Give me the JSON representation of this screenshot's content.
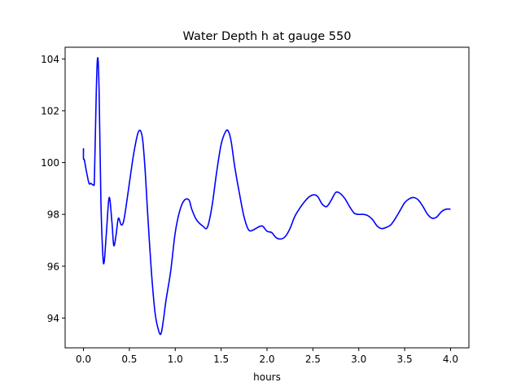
{
  "chart_data": {
    "type": "line",
    "title": "Water Depth h at gauge 550",
    "xlabel": "hours",
    "ylabel": "",
    "xlim": [
      -0.2,
      4.2
    ],
    "ylim": [
      92.85,
      104.45
    ],
    "xticks": [
      0.0,
      0.5,
      1.0,
      1.5,
      2.0,
      2.5,
      3.0,
      3.5,
      4.0
    ],
    "xtick_labels": [
      "0.0",
      "0.5",
      "1.0",
      "1.5",
      "2.0",
      "2.5",
      "3.0",
      "3.5",
      "4.0"
    ],
    "yticks": [
      94,
      96,
      98,
      100,
      102,
      104
    ],
    "ytick_labels": [
      "94",
      "96",
      "98",
      "100",
      "102",
      "104"
    ],
    "grid": false,
    "legend": "none",
    "series": [
      {
        "color": "#0000ff",
        "x": [
          0.0,
          0.0,
          0.01,
          0.03,
          0.06,
          0.08,
          0.11,
          0.12,
          0.14,
          0.155,
          0.17,
          0.19,
          0.21,
          0.225,
          0.25,
          0.28,
          0.31,
          0.33,
          0.355,
          0.38,
          0.41,
          0.435,
          0.46,
          0.5,
          0.55,
          0.6,
          0.64,
          0.67,
          0.7,
          0.74,
          0.78,
          0.82,
          0.845,
          0.87,
          0.9,
          0.95,
          1.0,
          1.05,
          1.1,
          1.15,
          1.18,
          1.23,
          1.3,
          1.35,
          1.4,
          1.45,
          1.5,
          1.55,
          1.58,
          1.61,
          1.65,
          1.7,
          1.75,
          1.8,
          1.85,
          1.9,
          1.95,
          2.0,
          2.05,
          2.1,
          2.15,
          2.2,
          2.25,
          2.3,
          2.35,
          2.4,
          2.45,
          2.5,
          2.55,
          2.6,
          2.65,
          2.7,
          2.75,
          2.8,
          2.85,
          2.9,
          2.95,
          3.0,
          3.05,
          3.1,
          3.15,
          3.2,
          3.25,
          3.3,
          3.35,
          3.4,
          3.45,
          3.5,
          3.55,
          3.6,
          3.65,
          3.7,
          3.75,
          3.8,
          3.85,
          3.9,
          3.95,
          4.0
        ],
        "y": [
          100.55,
          100.15,
          100.1,
          99.7,
          99.2,
          99.2,
          99.15,
          99.5,
          102.8,
          104.05,
          102.8,
          98.5,
          96.5,
          96.15,
          97.3,
          98.65,
          97.7,
          96.8,
          97.2,
          97.85,
          97.6,
          97.7,
          98.2,
          99.2,
          100.4,
          101.2,
          101.0,
          99.8,
          98.0,
          95.8,
          94.2,
          93.5,
          93.4,
          93.9,
          94.7,
          95.8,
          97.3,
          98.15,
          98.55,
          98.55,
          98.2,
          97.8,
          97.55,
          97.5,
          98.3,
          99.6,
          100.7,
          101.2,
          101.2,
          100.8,
          99.8,
          98.8,
          97.9,
          97.4,
          97.4,
          97.5,
          97.55,
          97.35,
          97.3,
          97.1,
          97.05,
          97.15,
          97.45,
          97.9,
          98.2,
          98.45,
          98.65,
          98.75,
          98.7,
          98.4,
          98.3,
          98.55,
          98.85,
          98.8,
          98.6,
          98.3,
          98.05,
          98.0,
          98.0,
          97.95,
          97.8,
          97.55,
          97.45,
          97.5,
          97.6,
          97.85,
          98.15,
          98.45,
          98.6,
          98.65,
          98.55,
          98.3,
          98.0,
          97.85,
          97.9,
          98.1,
          98.2,
          98.2
        ]
      }
    ]
  }
}
